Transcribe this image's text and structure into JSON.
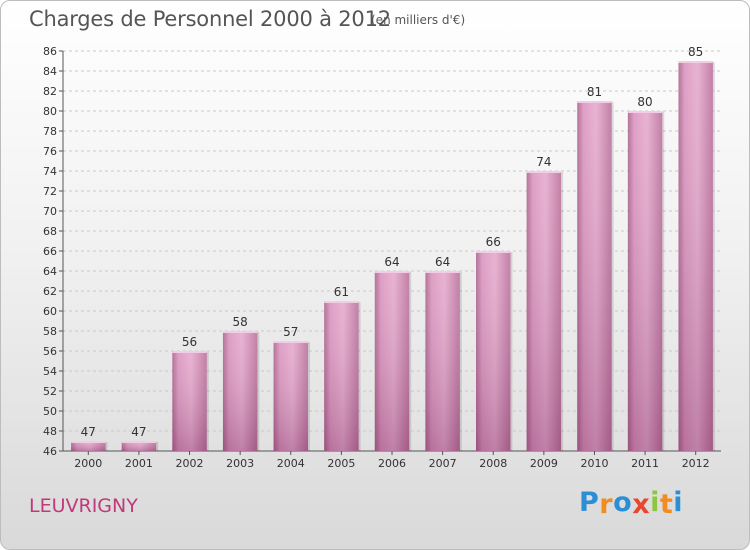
{
  "chart_data": {
    "type": "bar",
    "title": "Charges de Personnel 2000 à 2012",
    "subtitle": "(en milliers d'€)",
    "categories": [
      "2000",
      "2001",
      "2002",
      "2003",
      "2004",
      "2005",
      "2006",
      "2007",
      "2008",
      "2009",
      "2010",
      "2011",
      "2012"
    ],
    "values": [
      47,
      47,
      56,
      58,
      57,
      61,
      64,
      64,
      66,
      74,
      81,
      80,
      85
    ],
    "ylim": [
      46,
      86
    ],
    "yticks": [
      46,
      48,
      50,
      52,
      54,
      56,
      58,
      60,
      62,
      64,
      66,
      68,
      70,
      72,
      74,
      76,
      78,
      80,
      82,
      84,
      86
    ],
    "grid": true,
    "bar_color": "#d98fbc"
  },
  "footer": {
    "location": "LEUVRIGNY",
    "logo_letters": [
      "P",
      "r",
      "o",
      "x",
      "i",
      "t",
      "i"
    ],
    "logo_colors": [
      "#2b8fd6",
      "#f28c1e",
      "#2b8fd6",
      "#e8462d",
      "#8cc63f",
      "#f28c1e",
      "#2b8fd6"
    ]
  }
}
